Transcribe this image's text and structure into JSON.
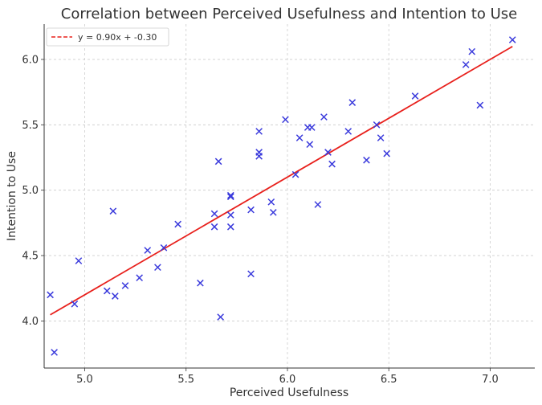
{
  "chart_data": {
    "type": "scatter",
    "title": "Correlation between Perceived Usefulness and Intention to Use",
    "xlabel": "Perceived Usefulness",
    "ylabel": "Intention to Use",
    "xlim": [
      4.8,
      7.22
    ],
    "ylim": [
      3.64,
      6.27
    ],
    "xticks": [
      5.0,
      5.5,
      6.0,
      6.5,
      7.0
    ],
    "yticks": [
      4.0,
      4.5,
      5.0,
      5.5,
      6.0
    ],
    "xtick_labels": [
      "5.0",
      "5.5",
      "6.0",
      "6.5",
      "7.0"
    ],
    "ytick_labels": [
      "4.0",
      "4.5",
      "5.0",
      "5.5",
      "6.0"
    ],
    "grid": true,
    "legend_position": "top-left",
    "series": [
      {
        "marker": "x",
        "color": "#3b3bdc",
        "points": [
          [
            4.83,
            4.2
          ],
          [
            4.85,
            3.76
          ],
          [
            4.95,
            4.13
          ],
          [
            4.97,
            4.46
          ],
          [
            5.11,
            4.23
          ],
          [
            5.14,
            4.84
          ],
          [
            5.15,
            4.19
          ],
          [
            5.2,
            4.27
          ],
          [
            5.27,
            4.33
          ],
          [
            5.31,
            4.54
          ],
          [
            5.36,
            4.41
          ],
          [
            5.39,
            4.56
          ],
          [
            5.46,
            4.74
          ],
          [
            5.57,
            4.29
          ],
          [
            5.64,
            4.82
          ],
          [
            5.64,
            4.72
          ],
          [
            5.66,
            5.22
          ],
          [
            5.67,
            4.03
          ],
          [
            5.72,
            4.96
          ],
          [
            5.72,
            4.95
          ],
          [
            5.72,
            4.81
          ],
          [
            5.72,
            4.72
          ],
          [
            5.82,
            4.85
          ],
          [
            5.82,
            4.36
          ],
          [
            5.86,
            5.45
          ],
          [
            5.86,
            5.29
          ],
          [
            5.86,
            5.26
          ],
          [
            5.92,
            4.91
          ],
          [
            5.93,
            4.83
          ],
          [
            5.99,
            5.54
          ],
          [
            6.04,
            5.12
          ],
          [
            6.06,
            5.4
          ],
          [
            6.1,
            5.48
          ],
          [
            6.11,
            5.35
          ],
          [
            6.12,
            5.48
          ],
          [
            6.15,
            4.89
          ],
          [
            6.18,
            5.56
          ],
          [
            6.2,
            5.29
          ],
          [
            6.22,
            5.2
          ],
          [
            6.3,
            5.45
          ],
          [
            6.32,
            5.67
          ],
          [
            6.39,
            5.23
          ],
          [
            6.44,
            5.5
          ],
          [
            6.46,
            5.4
          ],
          [
            6.49,
            5.28
          ],
          [
            6.63,
            5.72
          ],
          [
            6.88,
            5.96
          ],
          [
            6.91,
            6.06
          ],
          [
            6.95,
            5.65
          ],
          [
            7.11,
            6.15
          ]
        ]
      },
      {
        "name": "y = 0.90x + -0.30",
        "type": "line",
        "color": "#e8201c",
        "dash": "dashed-in-legend",
        "x": [
          4.83,
          7.11
        ],
        "y": [
          4.047,
          6.099
        ]
      }
    ]
  }
}
